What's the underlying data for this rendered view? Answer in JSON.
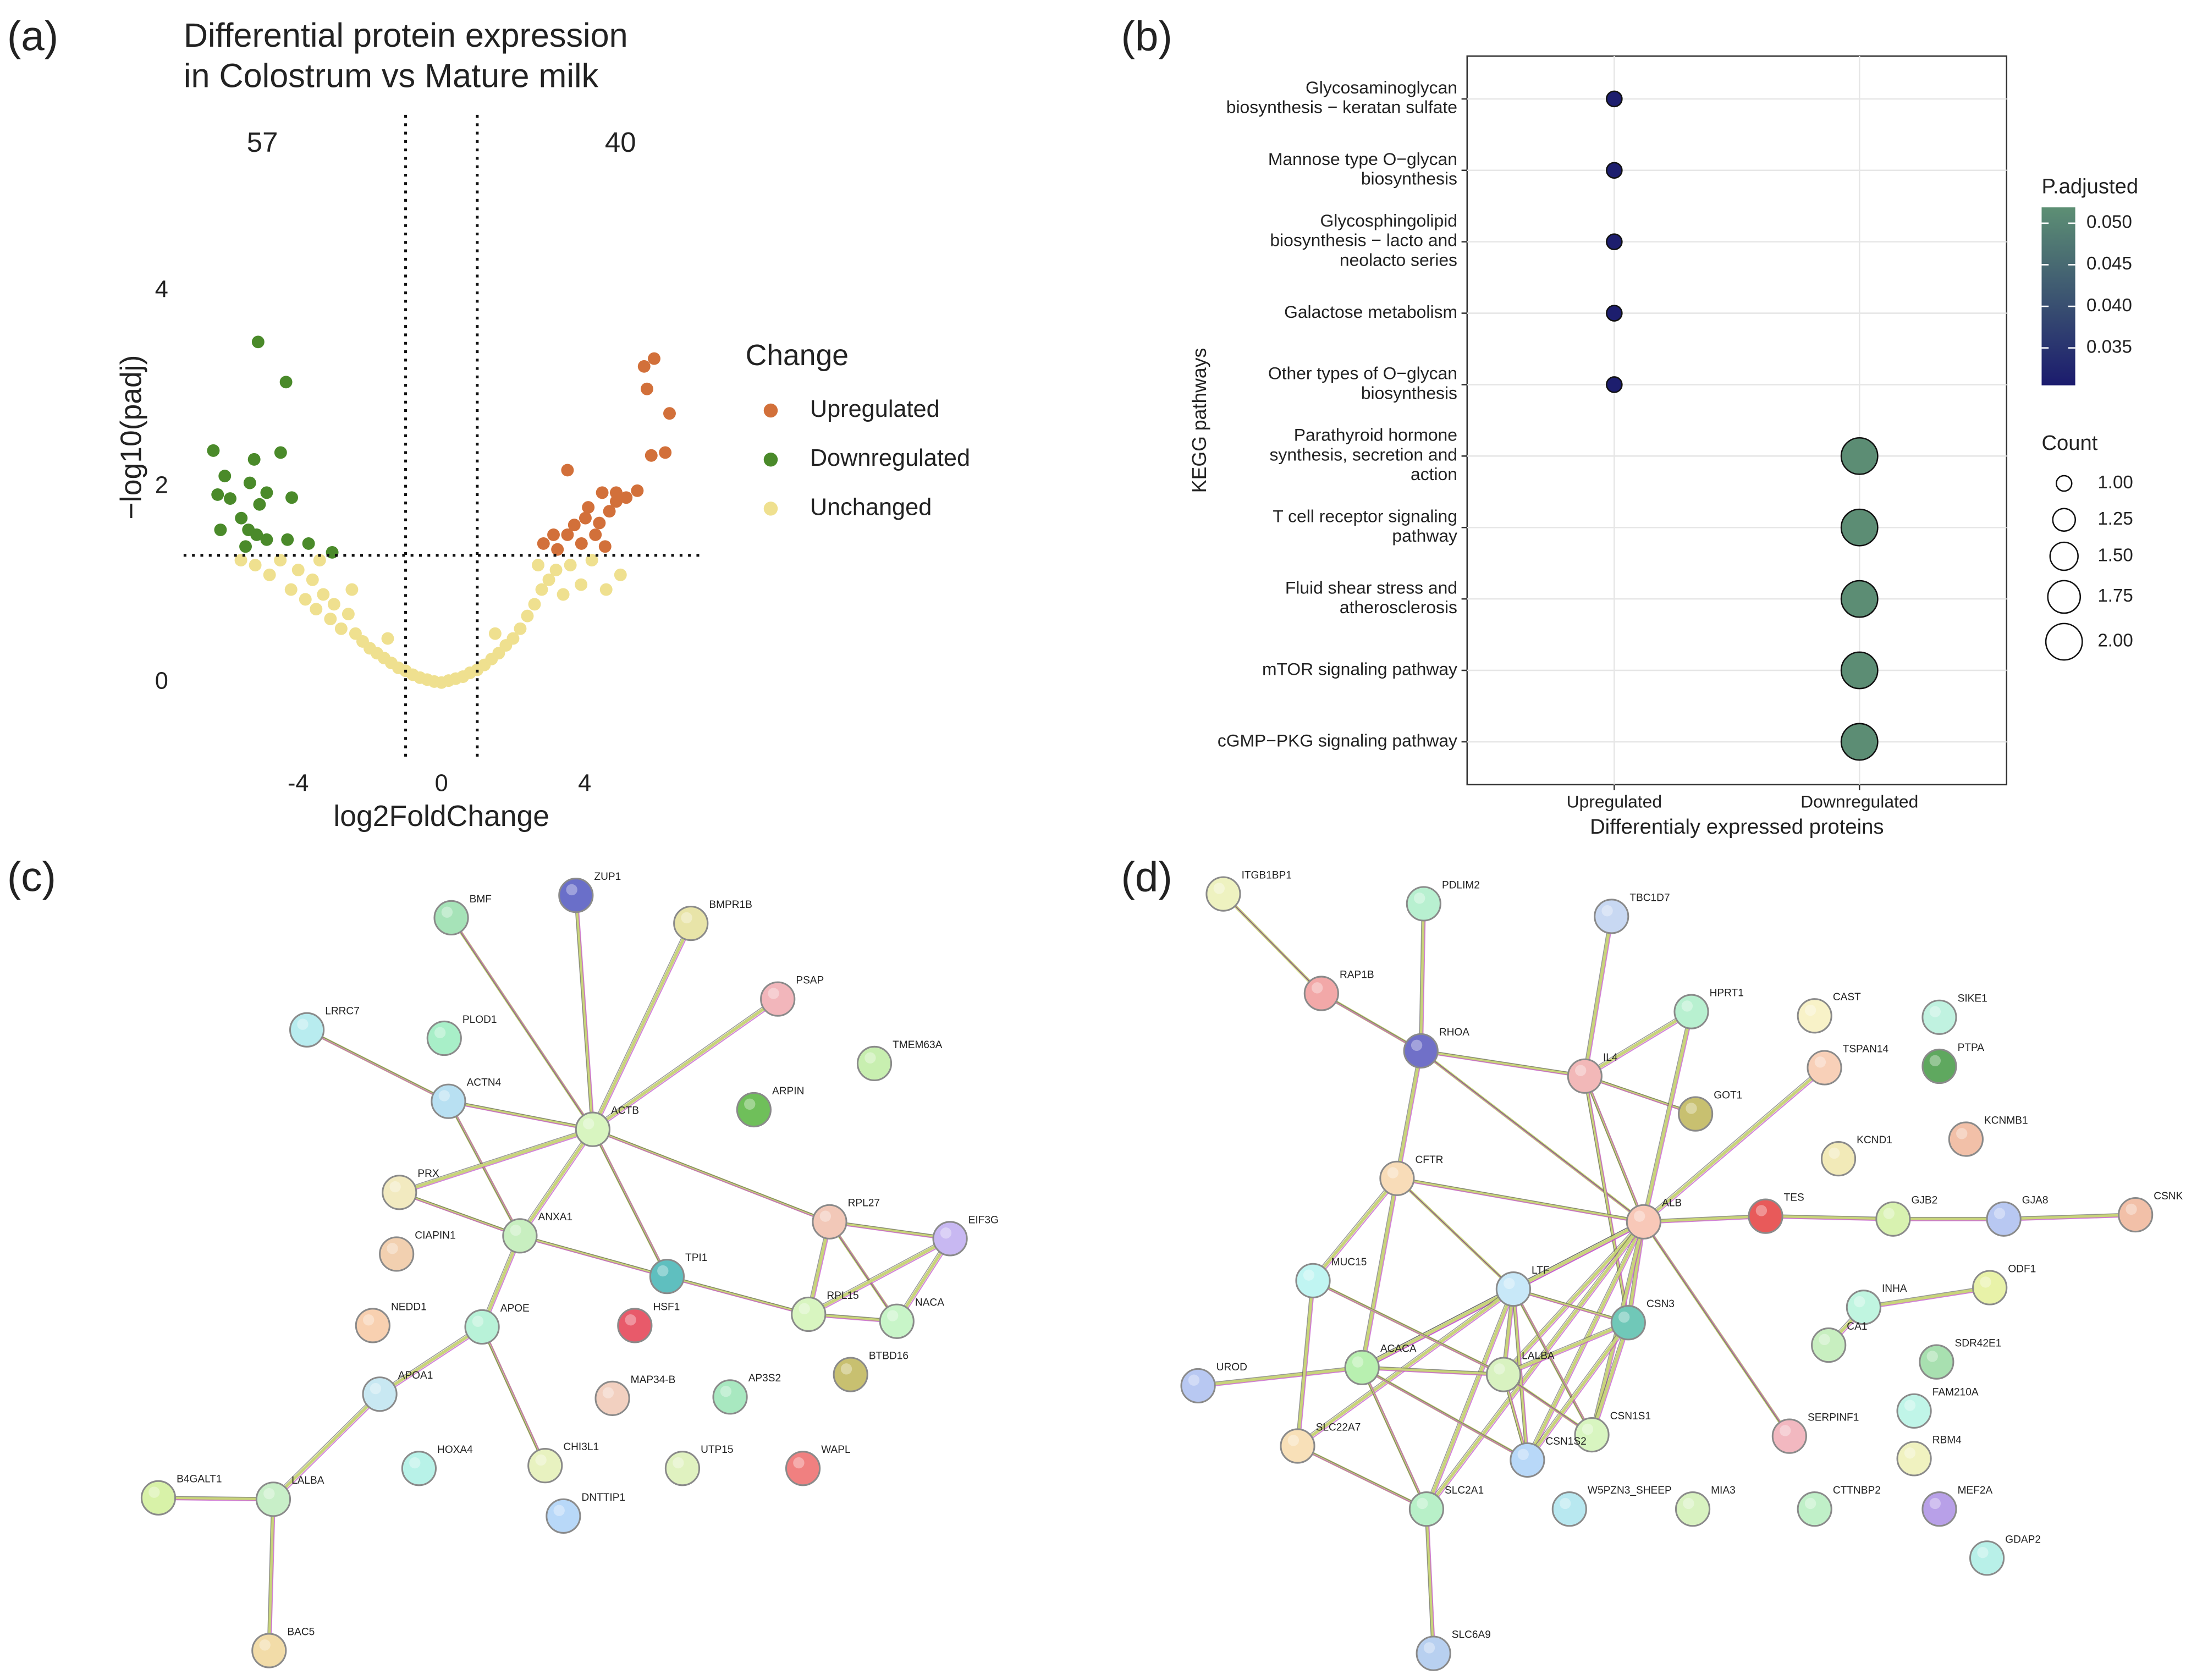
{
  "panel_labels": [
    "(a)",
    "(b)",
    "(c)",
    "(d)"
  ],
  "chart_data": [
    {
      "type": "scatter",
      "title": "Differential protein expression\nin Colostrum vs Mature milk",
      "x_label": "log2FoldChange",
      "y_label": "−log10(padj)",
      "annotations": [
        57,
        40
      ],
      "xlim": [
        -7.2,
        7.2
      ],
      "ylim": [
        -0.8,
        5.8
      ],
      "xticks": [
        -4,
        0,
        4
      ],
      "yticks": [
        0,
        2,
        4
      ],
      "vlines": [
        -1,
        1
      ],
      "hline": 1.3,
      "legend_title": "Change",
      "series": [
        {
          "name": "Upregulated",
          "color": "#d2703a",
          "x": [
            5.94,
            5.66,
            5.74,
            6.37,
            5.86,
            6.25,
            3.52,
            4.49,
            4.88,
            5.47,
            5.16,
            4.1,
            4.69,
            4.02,
            4.41,
            3.71,
            3.13,
            3.52,
            4.3,
            2.85,
            3.91,
            3.24,
            4.57,
            4.88
          ],
          "values": [
            3.31,
            3.23,
            3.0,
            2.75,
            2.32,
            2.35,
            2.17,
            1.94,
            1.94,
            1.96,
            1.89,
            1.79,
            1.75,
            1.68,
            1.63,
            1.61,
            1.51,
            1.51,
            1.51,
            1.42,
            1.42,
            1.36,
            1.39,
            1.85
          ]
        },
        {
          "name": "Downregulated",
          "color": "#4a8a2a",
          "x": [
            -5.12,
            -4.34,
            -6.37,
            -5.23,
            -4.49,
            -6.05,
            -5.35,
            -6.25,
            -5.9,
            -4.88,
            -5.08,
            -4.18,
            -5.59,
            -6.17,
            -5.39,
            -5.16,
            -4.88,
            -4.3,
            -3.71,
            -3.05,
            -5.47
          ],
          "values": [
            3.48,
            3.07,
            2.37,
            2.28,
            2.35,
            2.11,
            2.04,
            1.92,
            1.88,
            1.94,
            1.82,
            1.89,
            1.68,
            1.56,
            1.56,
            1.51,
            1.46,
            1.46,
            1.42,
            1.33,
            1.39
          ]
        },
        {
          "name": "Unchanged",
          "color": "#efe08f",
          "x": [
            -5.2,
            -4.8,
            -4.5,
            -4.2,
            -4.0,
            -3.8,
            -3.6,
            -3.5,
            -3.3,
            -3.1,
            -3.0,
            -2.8,
            -2.6,
            -2.4,
            -2.2,
            -2.0,
            -1.8,
            -1.6,
            -1.4,
            -1.2,
            -1.0,
            -0.8,
            -0.6,
            -0.4,
            -0.2,
            0,
            0.2,
            0.4,
            0.6,
            0.8,
            1.0,
            1.2,
            1.4,
            1.6,
            1.8,
            2.0,
            2.2,
            2.4,
            2.6,
            2.8,
            3.0,
            3.2,
            3.4,
            3.6,
            3.9,
            4.2,
            4.6,
            -2.5,
            2.7,
            -3.4,
            -1.5,
            1.5,
            -5.6,
            5.0
          ],
          "values": [
            1.2,
            1.1,
            1.25,
            0.95,
            1.15,
            0.85,
            1.05,
            0.75,
            0.9,
            0.65,
            0.8,
            0.55,
            0.7,
            0.5,
            0.42,
            0.35,
            0.3,
            0.25,
            0.2,
            0.15,
            0.12,
            0.08,
            0.05,
            0.03,
            0.01,
            0.0,
            0.02,
            0.04,
            0.06,
            0.1,
            0.13,
            0.18,
            0.24,
            0.3,
            0.38,
            0.45,
            0.55,
            0.68,
            0.8,
            0.95,
            1.05,
            1.15,
            0.9,
            1.2,
            1.0,
            1.25,
            0.95,
            0.95,
            1.2,
            1.25,
            0.45,
            0.5,
            1.25,
            1.1
          ]
        }
      ]
    },
    {
      "type": "dot",
      "x_label": "Differentialy expressed proteins",
      "y_label": "KEGG pathways",
      "categories": [
        "Glycosaminoglycan\nbiosynthesis − keratan sulfate",
        "Mannose type O−glycan\nbiosynthesis",
        "Glycosphingolipid\nbiosynthesis − lacto and\nneolacto series",
        "Galactose metabolism",
        "Other types of O−glycan\nbiosynthesis",
        "Parathyroid hormone\nsynthesis, secretion and\naction",
        "T cell receptor signaling\npathway",
        "Fluid shear stress and\natherosclerosis",
        "mTOR signaling pathway",
        "cGMP−PKG signaling pathway"
      ],
      "series": [
        {
          "name": "Upregulated",
          "values": [
            1,
            1,
            1,
            1,
            1,
            null,
            null,
            null,
            null,
            null
          ],
          "p_adjusted": [
            0.031,
            0.031,
            0.031,
            0.031,
            0.031,
            null,
            null,
            null,
            null,
            null
          ]
        },
        {
          "name": "Downregulated",
          "values": [
            null,
            null,
            null,
            null,
            null,
            2,
            2,
            2,
            2,
            2
          ],
          "p_adjusted": [
            null,
            null,
            null,
            null,
            null,
            0.0515,
            0.0515,
            0.0515,
            0.0515,
            0.0515
          ]
        }
      ],
      "grid": true,
      "color_title": "P.adjusted",
      "color_lim": [
        0.0305,
        0.0519
      ],
      "colors": [
        "#1b1b6e",
        "#5d8f74"
      ],
      "color_ticks": [
        {
          "value": 0.05,
          "label": "0.050"
        },
        {
          "value": 0.045,
          "label": "0.045"
        },
        {
          "value": 0.04,
          "label": "0.040"
        },
        0.035
      ],
      "size_title": "Count",
      "size_ticks": [
        {
          "value": 1,
          "label": "1.00"
        },
        1.25,
        {
          "value": 1.5,
          "label": "1.50"
        },
        1.75,
        {
          "value": 2,
          "label": "2.00"
        }
      ]
    }
  ],
  "networks": [
    {
      "nodes": [
        "BMF",
        "ZUP1",
        "BMPR1B",
        "PSAP",
        "LRRC7",
        "PLOD1",
        "TMEM63A",
        "ACTN4",
        "ACTB",
        "ARPIN",
        "PRX",
        "CIAPIN1",
        "ANXA1",
        "RPL27",
        "EIF3G",
        "TPI1",
        "NEDD1",
        "APOE",
        "HSF1",
        "RPL15",
        "NACA",
        "BTBD16",
        "MAP34-B",
        "AP3S2",
        "APOA1",
        "HOXA4",
        "CHI3L1",
        "UTP15",
        "WAPL",
        "DNTTIP1",
        "B4GALT1",
        "LALBA",
        "BAC5"
      ]
    },
    {
      "nodes": [
        "ITGB1BP1",
        "PDLIM2",
        "TBC1D7",
        "RAP1B",
        "HPRT1",
        "CAST",
        "SIKE1",
        "RHOA",
        "IL4",
        "TSPAN14",
        "PTPA",
        "GOT1",
        "KCND1",
        "KCNMB1",
        "CFTR",
        "ALB",
        "TES",
        "GJB2",
        "GJA8",
        "CSNK",
        "MUC15",
        "ODF1",
        "LTF",
        "CSN3",
        "INHA",
        "CA1",
        "UROD",
        "ACACA",
        "LALBA",
        "SDR42E1",
        "FAM210A",
        "SLC22A7",
        "SERPINF1",
        "CSN1S1",
        "CSN1S2",
        "RBM4",
        "SLC2A1",
        "W5PZN3_SHEEP",
        "MIA3",
        "CTTNBP2",
        "MEF2A",
        "GDAP2",
        "SLC6A9"
      ]
    }
  ]
}
